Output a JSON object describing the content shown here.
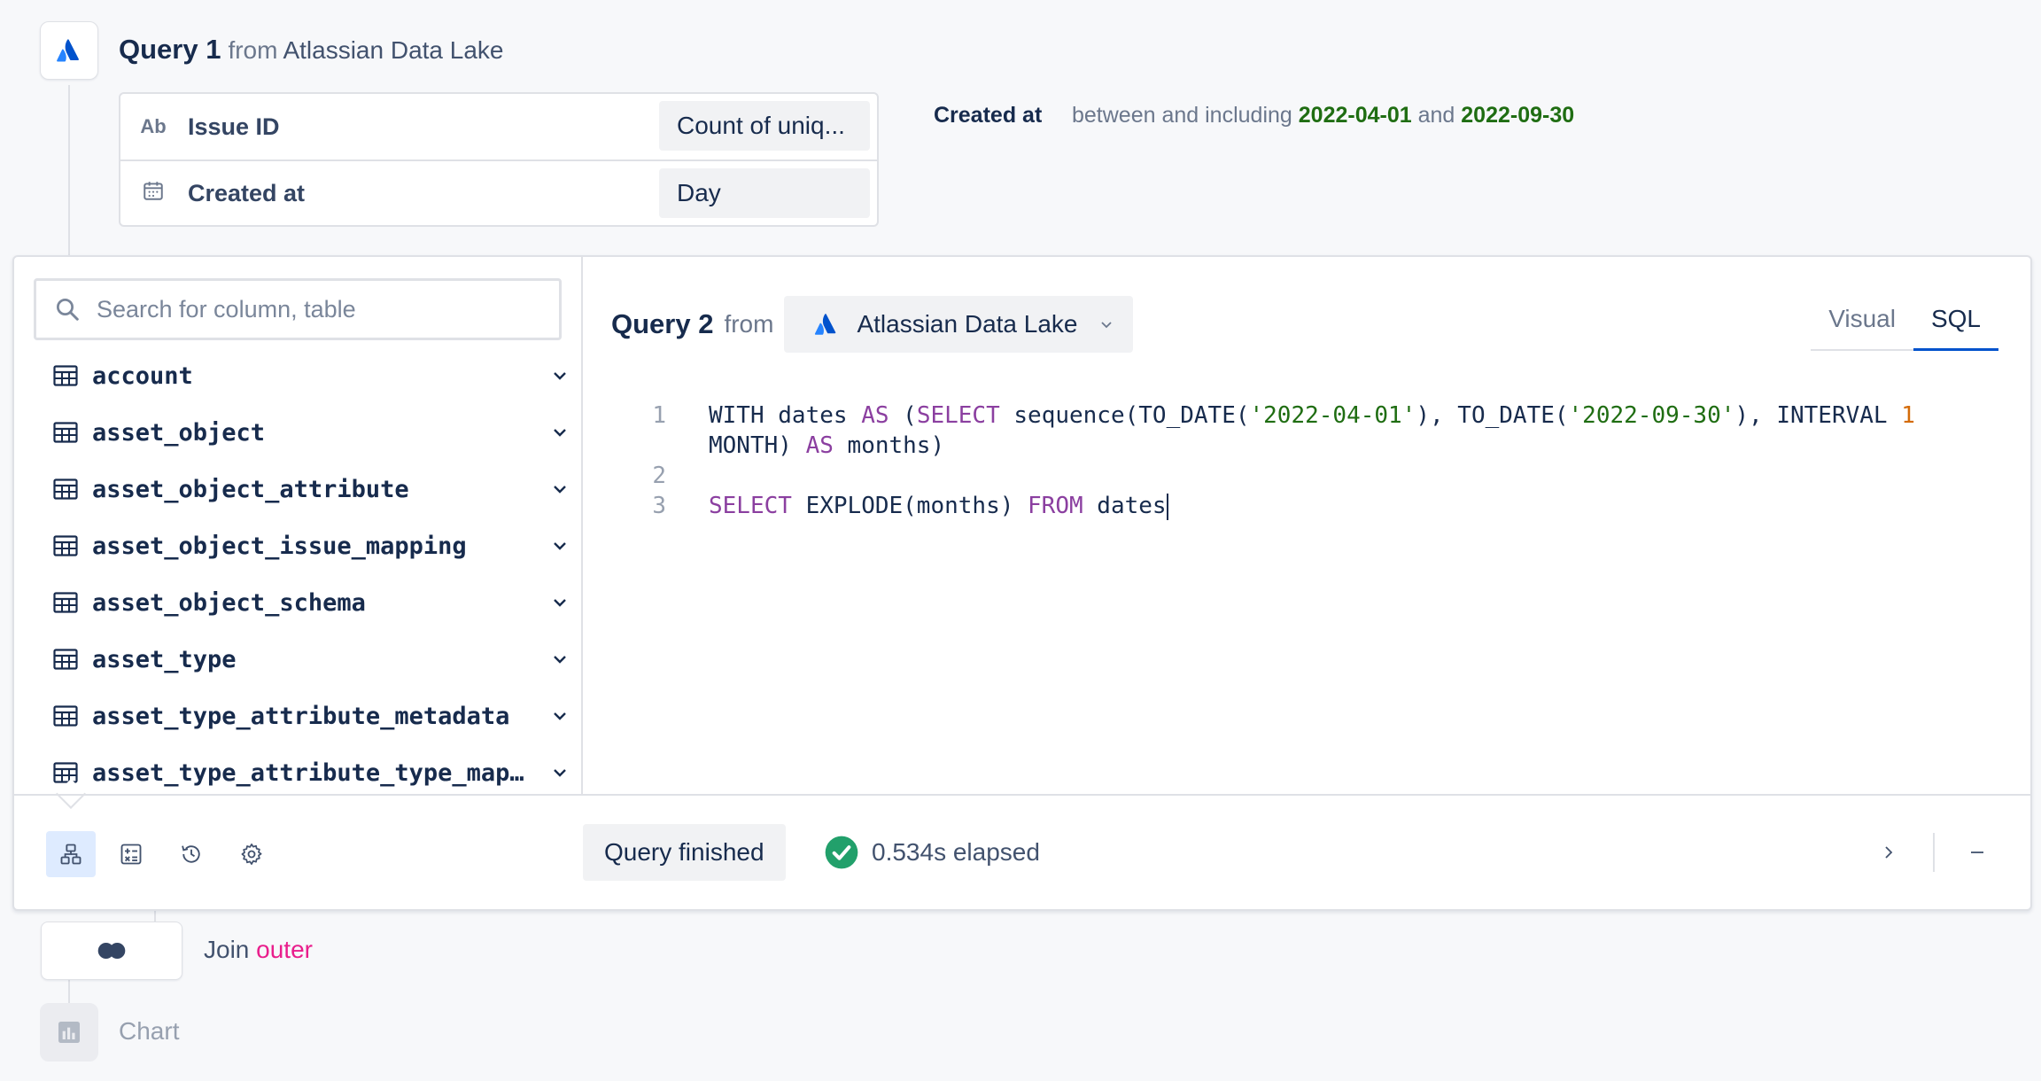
{
  "query1": {
    "title": "Query 1",
    "from": "from",
    "source": "Atlassian Data Lake",
    "rows": [
      {
        "type_icon": "Ab",
        "label": "Issue ID",
        "aggregation": "Count of uniq..."
      },
      {
        "type_icon": "calendar-icon",
        "label": "Created at",
        "aggregation": "Day"
      }
    ],
    "filter": {
      "field": "Created at",
      "operator": "between and including",
      "start": "2022-04-01",
      "joiner": "and",
      "end": "2022-09-30"
    }
  },
  "sidebar": {
    "search_placeholder": "Search for column, table",
    "tables": [
      "account",
      "asset_object",
      "asset_object_attribute",
      "asset_object_issue_mapping",
      "asset_object_schema",
      "asset_type",
      "asset_type_attribute_metadata",
      "asset_type_attribute_type_mapp..."
    ]
  },
  "query2": {
    "title": "Query 2",
    "from": "from",
    "source": "Atlassian Data Lake",
    "tabs": {
      "visual": "Visual",
      "sql": "SQL",
      "active": "SQL"
    },
    "line_numbers": [
      "1",
      "2",
      "3"
    ]
  },
  "status": {
    "label": "Query finished",
    "elapsed": "0.534s elapsed",
    "ok_color": "#22a06b"
  },
  "join": {
    "label": "Join",
    "type": "outer"
  },
  "chart": {
    "label": "Chart"
  },
  "colors": {
    "accent": "#0052cc",
    "keyword": "#8b3fa0",
    "string": "#1f6d12",
    "number": "#d46b08",
    "join_type": "#e91e8c"
  }
}
